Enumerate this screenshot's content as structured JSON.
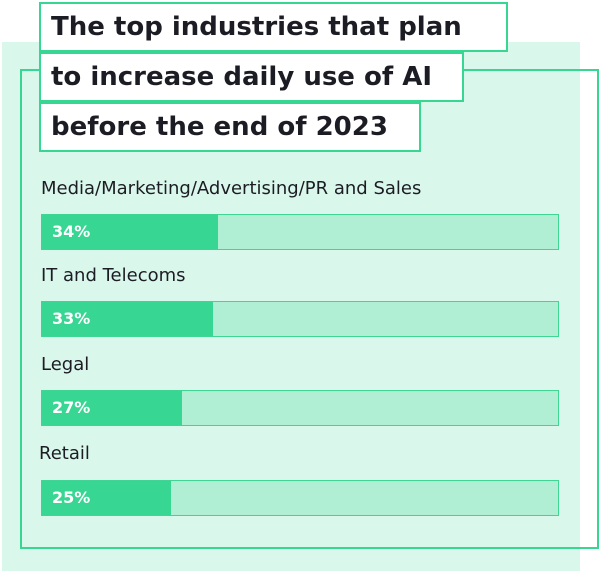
{
  "title_lines": [
    "The top industries that plan",
    "to increase daily use of AI",
    "before the end of 2023"
  ],
  "colors": {
    "background_panel": "#d9f7ea",
    "accent": "#38d693",
    "track": "#b1efd4",
    "text": "#1c1c24"
  },
  "chart_data": {
    "type": "bar",
    "orientation": "horizontal",
    "title": "The top industries that plan to increase daily use of AI before the end of 2023",
    "categories": [
      "Media/Marketing/Advertising/PR and Sales",
      "IT and Telecoms",
      "Legal",
      "Retail"
    ],
    "values": [
      34,
      33,
      27,
      25
    ],
    "value_labels": [
      "34%",
      "33%",
      "27%",
      "25%"
    ],
    "unit": "%",
    "xlim": [
      0,
      100
    ],
    "grid": false,
    "legend": "none"
  }
}
